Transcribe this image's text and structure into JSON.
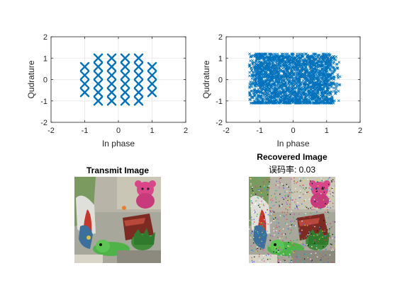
{
  "chart_data": [
    {
      "type": "scatter",
      "marker": "x",
      "marker_color": "#0072BD",
      "xlabel": "In phase",
      "ylabel": "Qudrature",
      "xlim": [
        -2,
        2
      ],
      "ylim": [
        -2,
        2
      ],
      "xticks": [
        "-2",
        "-1",
        "0",
        "1",
        "2"
      ],
      "yticks": [
        "-2",
        "-1",
        "0",
        "1",
        "2"
      ],
      "grid": true,
      "points": [
        {
          "x": -1.0,
          "y": 0.6
        },
        {
          "x": -1.0,
          "y": 0.2
        },
        {
          "x": -1.0,
          "y": -0.2
        },
        {
          "x": -1.0,
          "y": -0.6
        },
        {
          "x": -0.6,
          "y": 1.0
        },
        {
          "x": -0.6,
          "y": 0.6
        },
        {
          "x": -0.6,
          "y": 0.2
        },
        {
          "x": -0.6,
          "y": -0.2
        },
        {
          "x": -0.6,
          "y": -0.6
        },
        {
          "x": -0.6,
          "y": -1.0
        },
        {
          "x": -0.2,
          "y": 1.0
        },
        {
          "x": -0.2,
          "y": 0.6
        },
        {
          "x": -0.2,
          "y": 0.2
        },
        {
          "x": -0.2,
          "y": -0.2
        },
        {
          "x": -0.2,
          "y": -0.6
        },
        {
          "x": -0.2,
          "y": -1.0
        },
        {
          "x": 0.2,
          "y": 1.0
        },
        {
          "x": 0.2,
          "y": 0.6
        },
        {
          "x": 0.2,
          "y": 0.2
        },
        {
          "x": 0.2,
          "y": -0.2
        },
        {
          "x": 0.2,
          "y": -0.6
        },
        {
          "x": 0.2,
          "y": -1.0
        },
        {
          "x": 0.6,
          "y": 1.0
        },
        {
          "x": 0.6,
          "y": 0.6
        },
        {
          "x": 0.6,
          "y": 0.2
        },
        {
          "x": 0.6,
          "y": -0.2
        },
        {
          "x": 0.6,
          "y": -0.6
        },
        {
          "x": 0.6,
          "y": -1.0
        },
        {
          "x": 1.0,
          "y": 0.6
        },
        {
          "x": 1.0,
          "y": 0.2
        },
        {
          "x": 1.0,
          "y": -0.2
        },
        {
          "x": 1.0,
          "y": -0.6
        }
      ]
    },
    {
      "type": "scatter",
      "marker": "x",
      "marker_color": "#0072BD",
      "xlabel": "In phase",
      "ylabel": "Qudrature",
      "xlim": [
        -2,
        2
      ],
      "ylim": [
        -2,
        2
      ],
      "xticks": [
        "-2",
        "-1",
        "0",
        "1",
        "2"
      ],
      "yticks": [
        "-2",
        "-1",
        "0",
        "1",
        "2"
      ],
      "grid": true,
      "noisy_cloud": {
        "ideal_points_x": [
          -1.0,
          -0.6,
          -0.2,
          0.2,
          0.6,
          1.0
        ],
        "ideal_points_y": [
          -1.0,
          -0.6,
          -0.2,
          0.2,
          0.6,
          1.0
        ],
        "x_extent": [
          -1.3,
          1.4
        ],
        "y_extent": [
          -1.1,
          1.2
        ],
        "spread": 0.15
      }
    }
  ],
  "images": {
    "transmit": {
      "title": "Transmit Image",
      "description": "pink teddy bear, green toy, books, plant"
    },
    "recovered": {
      "title": "Recovered Image",
      "error_label": "误码率: 0.03",
      "description": "same scene with speckle noise"
    }
  }
}
